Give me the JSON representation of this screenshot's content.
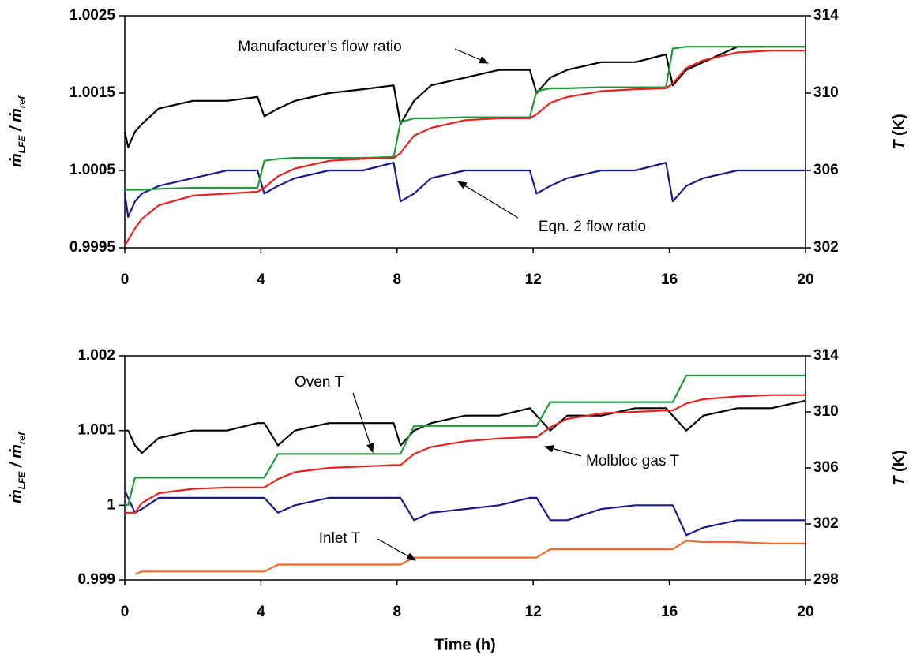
{
  "chart_data": [
    {
      "type": "line",
      "xlim": [
        0,
        20
      ],
      "xticks": [
        0,
        4,
        8,
        12,
        16,
        20
      ],
      "ylim": [
        0.9995,
        1.0025
      ],
      "yticks": [
        0.9995,
        1.0005,
        1.0015,
        1.0025
      ],
      "y2lim": [
        302,
        314
      ],
      "y2ticks": [
        302,
        306,
        310,
        314
      ],
      "ylabel": [
        "ṁ",
        "LFE",
        " / ṁ",
        "ref"
      ],
      "y2label": [
        "T",
        " (K)"
      ],
      "annotations": [
        "Manufacturer’s flow ratio",
        "Eqn. 2 flow ratio"
      ],
      "x": [
        0,
        0.1,
        0.3,
        0.5,
        1,
        2,
        3,
        3.9,
        4.1,
        4.5,
        5,
        6,
        7,
        7.9,
        8.1,
        8.5,
        9,
        10,
        11,
        11.9,
        12.1,
        12.5,
        13,
        14,
        15,
        15.9,
        16.1,
        16.5,
        17,
        18,
        19,
        20
      ],
      "series": [
        {
          "color": "#000000",
          "values": [
            1.001,
            1.0008,
            1.001,
            1.0011,
            1.0013,
            1.0014,
            1.0014,
            1.00145,
            1.0012,
            1.0013,
            1.0014,
            1.0015,
            1.00155,
            1.0016,
            1.0011,
            1.0014,
            1.0016,
            1.0017,
            1.0018,
            1.0018,
            1.0015,
            1.0017,
            1.0018,
            1.0019,
            1.0019,
            1.002,
            1.0016,
            1.0018,
            1.0019,
            1.0021,
            1.0021,
            1.0021
          ]
        },
        {
          "color": "#1a1a8c",
          "values": [
            1.0002,
            0.9999,
            1.0001,
            1.0002,
            1.0003,
            1.0004,
            1.0005,
            1.0005,
            1.0002,
            1.0003,
            1.0004,
            1.0005,
            1.0005,
            1.0006,
            1.0001,
            1.0002,
            1.0004,
            1.0005,
            1.0005,
            1.0005,
            1.0002,
            1.0003,
            1.0004,
            1.0005,
            1.0005,
            1.0006,
            1.0001,
            1.0003,
            1.0004,
            1.0005,
            1.0005,
            1.0005
          ]
        },
        {
          "color": "#1f9a3a",
          "axis": "y2",
          "values": [
            305,
            305,
            305,
            305,
            305.05,
            305.1,
            305.1,
            305.1,
            306.5,
            306.6,
            306.65,
            306.65,
            306.65,
            306.7,
            308.5,
            308.7,
            308.7,
            308.75,
            308.75,
            308.75,
            310.1,
            310.25,
            310.25,
            310.3,
            310.3,
            310.3,
            312.3,
            312.4,
            312.4,
            312.4,
            312.4,
            312.4
          ]
        },
        {
          "color": "#e8231e",
          "axis": "y2",
          "values": [
            302.1,
            302.4,
            303,
            303.5,
            304.2,
            304.7,
            304.8,
            304.9,
            305.1,
            305.7,
            306.1,
            306.5,
            306.6,
            306.65,
            306.9,
            307.8,
            308.2,
            308.6,
            308.7,
            308.7,
            308.9,
            309.5,
            309.8,
            310.1,
            310.2,
            310.25,
            310.5,
            311.3,
            311.7,
            312.1,
            312.2,
            312.2
          ]
        }
      ]
    },
    {
      "type": "line",
      "xlim": [
        0,
        20
      ],
      "xticks": [
        0,
        4,
        8,
        12,
        16,
        20
      ],
      "ylim": [
        0.999,
        1.002
      ],
      "yticks": [
        0.999,
        1,
        1.001,
        1.002
      ],
      "y2lim": [
        298,
        314
      ],
      "y2ticks": [
        298,
        302,
        306,
        310,
        314
      ],
      "ylabel": [
        "ṁ",
        "LFE",
        " / ṁ",
        "ref"
      ],
      "y2label": [
        "T",
        " (K)"
      ],
      "xlabel": "Time (h)",
      "annotations": [
        "Oven T",
        "Molbloc gas T",
        "Inlet T"
      ],
      "x": [
        0,
        0.1,
        0.3,
        0.5,
        1,
        2,
        3,
        3.9,
        4.1,
        4.5,
        5,
        6,
        7,
        7.9,
        8.1,
        8.5,
        9,
        10,
        11,
        11.9,
        12.1,
        12.5,
        13,
        14,
        15,
        15.9,
        16.1,
        16.5,
        17,
        18,
        19,
        20
      ],
      "series": [
        {
          "color": "#000000",
          "values": [
            1.001,
            1.001,
            1.0008,
            1.0007,
            1.0009,
            1.001,
            1.001,
            1.0011,
            1.0011,
            1.0008,
            1.001,
            1.0011,
            1.0011,
            1.0011,
            1.0008,
            1.001,
            1.0011,
            1.0012,
            1.0012,
            1.0013,
            1.0012,
            1.001,
            1.0012,
            1.0012,
            1.0013,
            1.0013,
            1.0012,
            1.001,
            1.0012,
            1.0013,
            1.0013,
            1.0014
          ]
        },
        {
          "color": "#1a1a8c",
          "values": [
            1.0002,
            1.0001,
            0.9999,
            0.99995,
            1.0001,
            1.0001,
            1.0001,
            1.0001,
            1.0001,
            0.9999,
            1,
            1.0001,
            1.0001,
            1.0001,
            1.0001,
            0.9998,
            0.9999,
            0.99995,
            1,
            1.0001,
            1.0001,
            0.9998,
            0.9998,
            0.99995,
            1,
            1,
            1,
            0.9996,
            0.9997,
            0.9998,
            0.9998,
            0.9998
          ]
        },
        {
          "color": "#1f9a3a",
          "axis": "y2",
          "values": [
            303.35,
            303.35,
            305.3,
            305.3,
            305.3,
            305.3,
            305.3,
            305.3,
            305.3,
            307,
            307,
            307,
            307,
            307,
            307,
            309,
            309,
            309,
            309,
            309,
            309,
            310.7,
            310.7,
            310.7,
            310.7,
            310.7,
            310.7,
            312.6,
            312.6,
            312.6,
            312.6,
            312.6
          ]
        },
        {
          "color": "#e8231e",
          "axis": "y2",
          "values": [
            302.8,
            302.8,
            302.8,
            303.5,
            304.2,
            304.5,
            304.6,
            304.6,
            304.6,
            305.2,
            305.7,
            306,
            306.1,
            306.2,
            306.2,
            307,
            307.5,
            307.9,
            308.1,
            308.2,
            308.2,
            308.9,
            309.5,
            309.9,
            310,
            310.1,
            310.1,
            310.6,
            310.9,
            311.1,
            311.2,
            311.2
          ]
        },
        {
          "color": "#f26b2a",
          "axis": "y2",
          "values": [
            null,
            null,
            298.4,
            298.6,
            298.6,
            298.6,
            298.6,
            298.6,
            298.6,
            299.1,
            299.1,
            299.1,
            299.1,
            299.1,
            299.1,
            299.6,
            299.6,
            299.6,
            299.6,
            299.6,
            299.6,
            300.2,
            300.2,
            300.2,
            300.2,
            300.2,
            300.2,
            300.8,
            300.7,
            300.7,
            300.6,
            300.6
          ]
        }
      ]
    }
  ]
}
